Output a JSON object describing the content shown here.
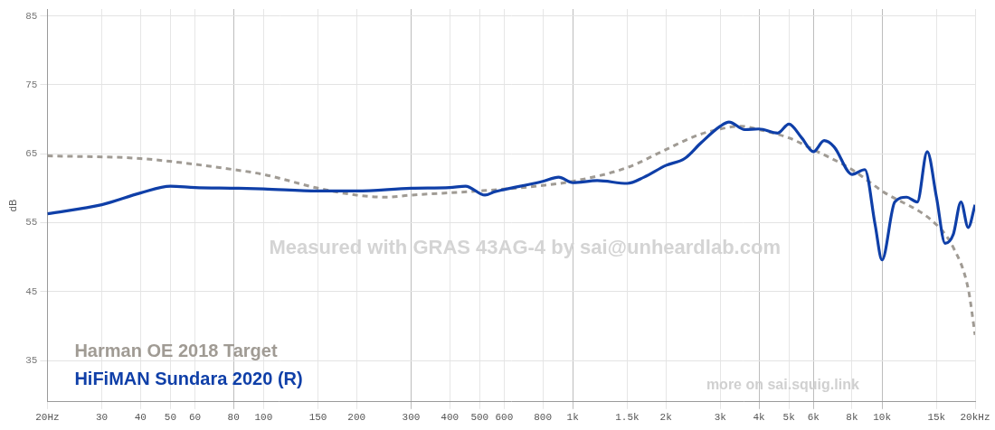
{
  "chart_data": {
    "type": "line",
    "y_label": "dB",
    "annotations": [
      "Measured with GRAS 43AG-4 by sai@unheardlab.com",
      "more on sai.squig.link"
    ],
    "log": "x",
    "grid": true,
    "legend": "lower left",
    "xlim": [
      20,
      20000
    ],
    "ylim": [
      29,
      86
    ],
    "yticks": [
      35,
      45,
      55,
      65,
      75,
      85
    ],
    "xticks": [
      {
        "value": 20,
        "label": "20Hz"
      },
      30,
      40,
      50,
      60,
      80,
      100,
      150,
      200,
      300,
      400,
      500,
      600,
      800,
      {
        "value": 1000,
        "label": "1k"
      },
      {
        "value": 1500,
        "label": "1.5k"
      },
      {
        "value": 2000,
        "label": "2k"
      },
      {
        "value": 3000,
        "label": "3k"
      },
      {
        "value": 4000,
        "label": "4k"
      },
      {
        "value": 5000,
        "label": "5k"
      },
      {
        "value": 6000,
        "label": "6k"
      },
      {
        "value": 8000,
        "label": "8k"
      },
      {
        "value": 10000,
        "label": "10k"
      },
      {
        "value": 15000,
        "label": "15k"
      },
      {
        "value": 20000,
        "label": "20kHz"
      }
    ],
    "series": [
      {
        "name": "Harman OE 2018 Target",
        "color": "#a09b94",
        "line_style": "dashed",
        "x": [
          20,
          40,
          80,
          100,
          150,
          200,
          250,
          300,
          500,
          800,
          1000,
          1500,
          2000,
          2500,
          3000,
          3500,
          4000,
          5000,
          6000,
          8000,
          10000,
          15000,
          17000,
          19000,
          20000
        ],
        "values": [
          64.7,
          64.3,
          62.7,
          62,
          60,
          59,
          58.7,
          59,
          59.6,
          60.4,
          61,
          63,
          65.6,
          67.6,
          68.6,
          69,
          68.5,
          67.3,
          65.6,
          62.7,
          59.6,
          54.7,
          51.4,
          45.4,
          38.7
        ]
      },
      {
        "name": "HiFiMAN Sundara 2020 (R)",
        "color": "#0f3fa8",
        "line_style": "solid",
        "x": [
          20,
          30,
          40,
          50,
          60,
          80,
          100,
          150,
          200,
          300,
          400,
          450,
          520,
          560,
          600,
          800,
          900,
          1000,
          1200,
          1500,
          1700,
          2000,
          2300,
          2600,
          3000,
          3200,
          3600,
          4000,
          4600,
          5000,
          5500,
          6000,
          6500,
          7000,
          8000,
          8800,
          9500,
          10000,
          11000,
          12000,
          13000,
          14000,
          15000,
          16000,
          17000,
          18000,
          19000,
          20000
        ],
        "values": [
          56.3,
          57.6,
          59.3,
          60.3,
          60.1,
          60,
          59.9,
          59.6,
          59.6,
          60,
          60.1,
          60.3,
          59,
          59.5,
          59.8,
          61,
          61.6,
          60.8,
          61.1,
          60.7,
          61.6,
          63.3,
          64.3,
          66.6,
          69,
          69.6,
          68.5,
          68.6,
          68,
          69.3,
          67.3,
          65.3,
          66.9,
          66,
          62,
          62.7,
          54.7,
          49.6,
          58,
          58.7,
          58,
          65.3,
          58.7,
          52,
          53.3,
          58,
          54.3,
          57.6
        ]
      }
    ]
  }
}
